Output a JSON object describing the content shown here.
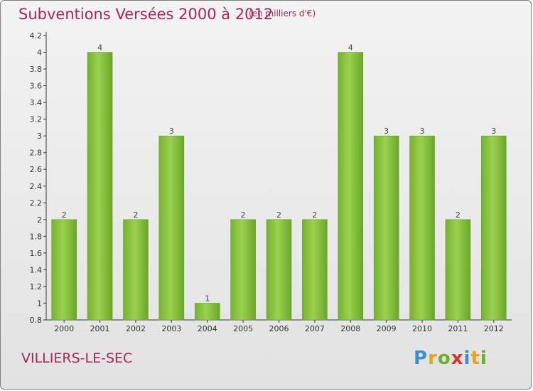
{
  "chart_data": {
    "type": "bar",
    "title": "Subventions Versées 2000 à 2012",
    "subtitle": "(en milliers d'€)",
    "categories": [
      "2000",
      "2001",
      "2002",
      "2003",
      "2004",
      "2005",
      "2006",
      "2007",
      "2008",
      "2009",
      "2010",
      "2011",
      "2012"
    ],
    "values": [
      2,
      4,
      2,
      3,
      1,
      2,
      2,
      2,
      4,
      3,
      3,
      2,
      3
    ],
    "data_labels": [
      "2",
      "4",
      "2",
      "3",
      "1",
      "2",
      "2",
      "2",
      "4",
      "3",
      "3",
      "2",
      "3"
    ],
    "xlabel": "",
    "ylabel": "",
    "ylim": [
      0.8,
      4.2
    ],
    "yticks": [
      "0.8",
      "1",
      "1.2",
      "1.4",
      "1.6",
      "1.8",
      "2",
      "2.2",
      "2.4",
      "2.6",
      "2.8",
      "3",
      "3.2",
      "3.4",
      "3.6",
      "3.8",
      "4",
      "4.2"
    ],
    "grid": false,
    "bar_color": "#7dbb37"
  },
  "footer": {
    "town": "VILLIERS-LE-SEC",
    "logo": "Proxiti"
  }
}
